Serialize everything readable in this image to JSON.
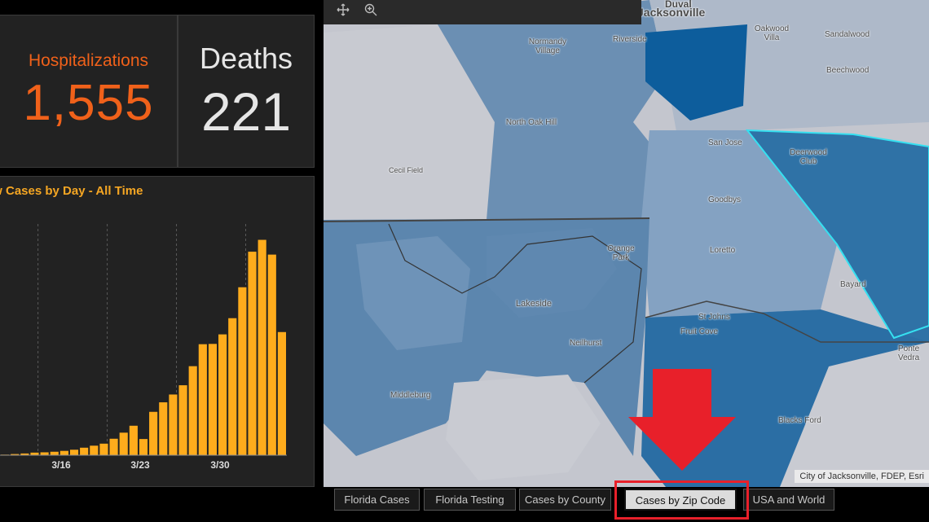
{
  "stats": {
    "hospitalizations": {
      "label": "Hospitalizations",
      "value": "1,555",
      "color": "#f0611a"
    },
    "deaths": {
      "label": "Deaths",
      "value": "221",
      "color": "#e6e6e6"
    }
  },
  "chart_data": {
    "type": "bar",
    "title": "New Cases by Day - All Time",
    "tick_labels": [
      "3/16",
      "3/23",
      "3/30"
    ],
    "values": [
      2,
      4,
      6,
      9,
      10,
      12,
      15,
      19,
      26,
      33,
      40,
      57,
      78,
      102,
      56,
      150,
      183,
      210,
      242,
      308,
      384,
      385,
      418,
      474,
      581,
      704,
      745,
      694,
      426
    ],
    "ylim": [
      0,
      800
    ],
    "bar_color": "#ffac1c",
    "grid": true
  },
  "map": {
    "labels": [
      "Jacksonville",
      "Duval",
      "Oakwood Villa",
      "Sandalwood",
      "Normandy Village",
      "Riverside",
      "Beechwood",
      "North Oak Hill",
      "San Jose",
      "Deerwood Club",
      "Cecil Field",
      "Goodbys",
      "Orange Park",
      "Loretto",
      "Lakeside",
      "Bayard",
      "St Johns",
      "Fruit Cove",
      "Neilhurst",
      "Ponte Vedra",
      "Middleburg",
      "Blacks Ford"
    ],
    "attribution": "City of Jacksonville, FDEP, Esri"
  },
  "toolbar": {
    "pan_icon": "move-icon",
    "zoom_icon": "zoom-in-icon"
  },
  "tabs": [
    {
      "label": "Florida Cases",
      "active": false
    },
    {
      "label": "Florida Testing",
      "active": false
    },
    {
      "label": "Cases by County",
      "active": false
    },
    {
      "label": "Cases by Zip Code",
      "active": true
    },
    {
      "label": "USA and World",
      "active": false
    }
  ],
  "annotation": {
    "arrow_color": "#e8202a"
  }
}
